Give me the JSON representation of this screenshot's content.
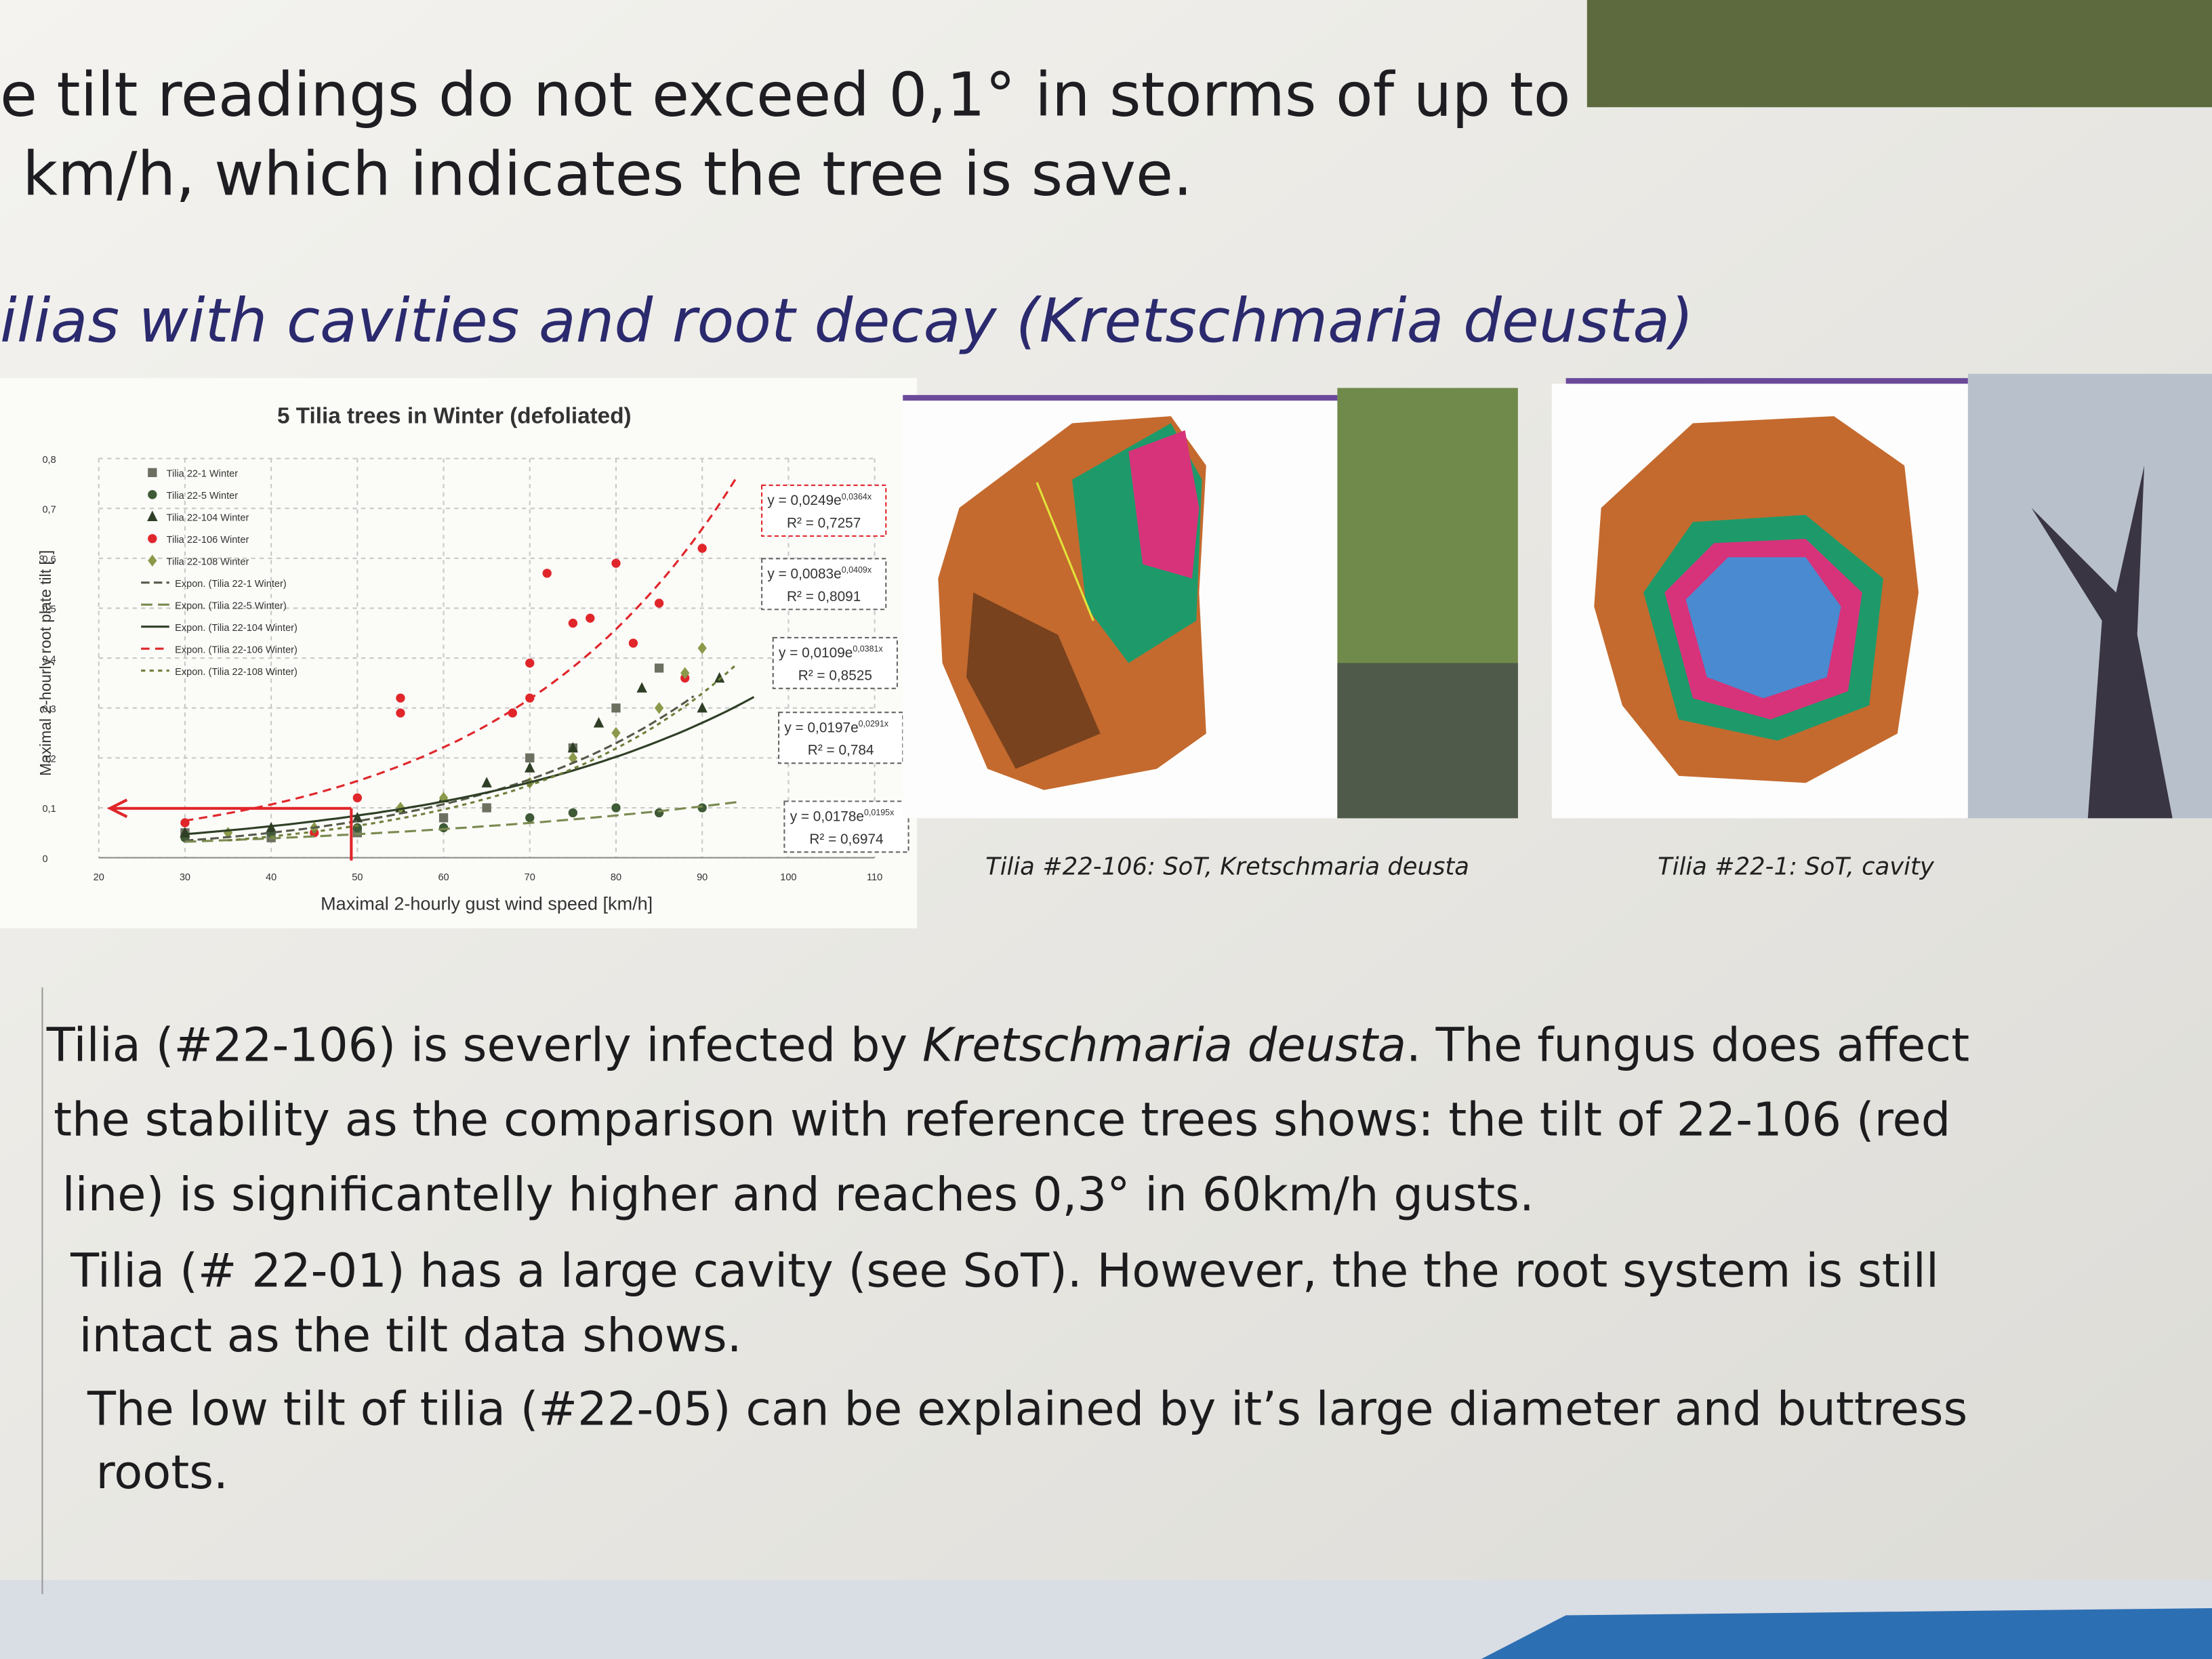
{
  "intro": {
    "lines": [
      "e tilt readings do not exceed 0,1° in storms of up to",
      "km/h, which indicates the tree is save."
    ]
  },
  "heading": "ilias with cavities and root decay (Kretschmaria deusta)",
  "chart": {
    "type": "scatter",
    "title": "5 Tilia trees in Winter (defoliated)",
    "x_label": "Maximal 2-hourly gust wind speed [km/h]",
    "y_label": "Maximal 2-hourly root plate tilt [°]",
    "xlim": [
      20,
      110
    ],
    "ylim": [
      0,
      0.8
    ],
    "xticks": [
      20,
      30,
      40,
      50,
      60,
      70,
      80,
      90,
      100,
      110
    ],
    "yticks": [
      0,
      {
        "value": 0.1,
        "label": "0,1"
      },
      {
        "value": 0.2,
        "label": "0,2"
      },
      {
        "value": 0.3,
        "label": "0,3"
      },
      {
        "value": 0.4,
        "label": "0,4"
      },
      {
        "value": 0.5,
        "label": "0,5"
      },
      {
        "value": 0.6,
        "label": "0,6"
      },
      {
        "value": 0.7,
        "label": "0,7"
      },
      {
        "value": 0.8,
        "label": "0,8"
      }
    ],
    "grid": true,
    "series": [
      {
        "name": "Tilia 22-1 Winter",
        "color": "#6b7060",
        "marker": "square",
        "x": [
          30,
          40,
          50,
          60,
          65,
          70,
          75,
          80,
          85
        ],
        "values": [
          0.05,
          0.04,
          0.05,
          0.08,
          0.1,
          0.2,
          0.22,
          0.3,
          0.38
        ]
      },
      {
        "name": "Tilia 22-5 Winter",
        "color": "#3f5a36",
        "marker": "circle",
        "x": [
          30,
          40,
          50,
          60,
          70,
          75,
          80,
          85,
          90
        ],
        "values": [
          0.04,
          0.05,
          0.06,
          0.06,
          0.08,
          0.09,
          0.1,
          0.09,
          0.1
        ]
      },
      {
        "name": "Tilia 22-104 Winter",
        "color": "#2f3f26",
        "marker": "triangle",
        "x": [
          30,
          40,
          50,
          55,
          60,
          65,
          70,
          75,
          78,
          83,
          90,
          92
        ],
        "values": [
          0.05,
          0.06,
          0.08,
          0.1,
          0.12,
          0.15,
          0.18,
          0.22,
          0.27,
          0.34,
          0.3,
          0.36
        ]
      },
      {
        "name": "Tilia 22-106 Winter",
        "color": "#e0262a",
        "marker": "circle",
        "x": [
          30,
          45,
          50,
          55,
          55,
          68,
          70,
          70,
          72,
          75,
          77,
          80,
          82,
          85,
          88,
          90
        ],
        "values": [
          0.07,
          0.05,
          0.12,
          0.32,
          0.29,
          0.29,
          0.32,
          0.39,
          0.57,
          0.47,
          0.48,
          0.59,
          0.43,
          0.51,
          0.36,
          0.62
        ]
      },
      {
        "name": "Tilia 22-108 Winter",
        "color": "#8a9a4a",
        "marker": "diamond",
        "x": [
          35,
          45,
          55,
          60,
          70,
          75,
          80,
          85,
          88,
          90
        ],
        "values": [
          0.05,
          0.06,
          0.1,
          0.12,
          0.15,
          0.2,
          0.25,
          0.3,
          0.37,
          0.42
        ]
      }
    ],
    "fits": [
      {
        "name": "Expon. (Tilia 22-1 Winter)",
        "color": "#555a4a",
        "dash": "6 3",
        "a": 0.0109,
        "b": 0.0381,
        "equation": "y = 0,0109e",
        "exponent": "0,0381x",
        "r2": "R² = 0,8525"
      },
      {
        "name": "Expon. (Tilia 22-5 Winter)",
        "color": "#7a8a50",
        "dash": "8 4",
        "a": 0.0178,
        "b": 0.0195,
        "equation": "y = 0,0178e",
        "exponent": "0,0195x",
        "r2": "R² = 0,6974"
      },
      {
        "name": "Expon. (Tilia 22-104 Winter)",
        "color": "#2f3f26",
        "dash": "none",
        "a": 0.0197,
        "b": 0.0291,
        "equation": "y = 0,0197e",
        "exponent": "0,0291x",
        "r2": "R² = 0,784"
      },
      {
        "name": "Expon. (Tilia 22-106 Winter)",
        "color": "#e0262a",
        "dash": "6 4",
        "a": 0.0249,
        "b": 0.0364,
        "equation": "y = 0,0249e",
        "exponent": "0,0364x",
        "r2": "R² = 0,7257"
      },
      {
        "name": "Expon. (Tilia 22-108 Winter)",
        "color": "#6f7f3a",
        "dash": "3 3",
        "a": 0.0083,
        "b": 0.0409,
        "equation": "y = 0,0083e",
        "exponent": "0,0409x",
        "r2": "R² = 0,8091"
      }
    ]
  },
  "captions": [
    "Tilia #22-106: SoT, Kretschmaria deusta",
    "Tilia #22-1: SoT, cavity"
  ],
  "body": {
    "lines": [
      [
        "Tilia (#22-106) is severly infected by ",
        "Kretschmaria deusta",
        ". The fungus does affect"
      ],
      [
        "the stability as the comparison with reference trees shows: the tilt of 22-106 (red"
      ],
      [
        "line) is significantelly higher and reaches 0,3° in 60km/h gusts."
      ],
      [
        "Tilia (# 22-01) has a large cavity (see SoT). However, the the root system is still"
      ],
      [
        "intact as the tilt data shows."
      ],
      [
        "The low tilt of tilia (#22-05) can be explained by it’s large diameter and buttress"
      ],
      [
        "roots."
      ]
    ]
  }
}
